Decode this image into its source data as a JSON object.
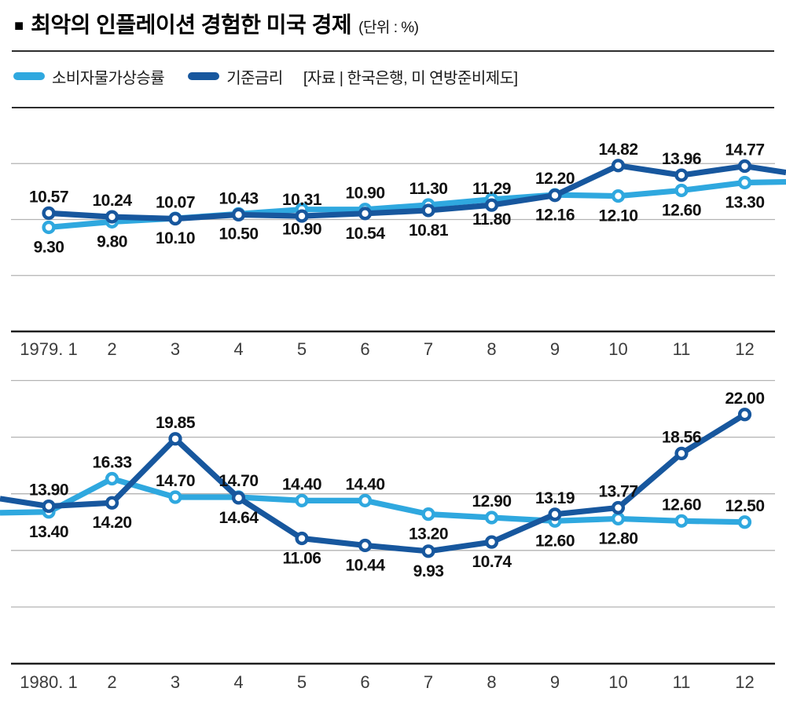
{
  "title": {
    "square_icon": "■",
    "text": "최악의 인플레이션 경험한 미국 경제",
    "unit": "(단위 : %)"
  },
  "legend": {
    "items": [
      {
        "key": "cpi",
        "label": "소비자물가상승률",
        "color": "#2FA8DF"
      },
      {
        "key": "rate",
        "label": "기준금리",
        "color": "#17579E"
      }
    ],
    "source": "[자료 | 한국은행, 미 연방준비제도]"
  },
  "colors": {
    "cpi": "#2FA8DF",
    "rate": "#17579E",
    "grid": "#b3b3b3",
    "axis": "#1f1f1f",
    "data_label": "#101010",
    "axis_label": "#3c3c3c"
  },
  "chart_data": [
    {
      "type": "line",
      "title": "미국 소비자물가상승률 및 기준금리 1979",
      "categories": [
        "1979. 1",
        "2",
        "3",
        "4",
        "5",
        "6",
        "7",
        "8",
        "9",
        "10",
        "11",
        "12"
      ],
      "ylim": [
        0,
        20
      ],
      "grid_step": 5,
      "legend_position": "top",
      "series": [
        {
          "key": "cpi",
          "name": "소비자물가상승률",
          "values": [
            9.3,
            9.8,
            10.1,
            10.5,
            10.9,
            10.9,
            11.3,
            11.8,
            12.2,
            12.1,
            12.6,
            13.3
          ],
          "label_pos": [
            "below",
            "below",
            "below",
            "below",
            "below",
            "above",
            "above",
            "below",
            "above",
            "below",
            "below",
            "below"
          ]
        },
        {
          "key": "rate",
          "name": "기준금리",
          "values": [
            10.57,
            10.24,
            10.07,
            10.43,
            10.31,
            10.54,
            10.81,
            11.29,
            12.16,
            14.82,
            13.96,
            14.77
          ],
          "label_pos": [
            "above",
            "above",
            "above",
            "above",
            "above",
            "below",
            "below",
            "above",
            "below",
            "above",
            "above",
            "above"
          ]
        }
      ],
      "edge": {
        "side": "right",
        "toward": {
          "cpi": 13.4,
          "rate": 13.9
        }
      }
    },
    {
      "type": "line",
      "title": "미국 소비자물가상승률 및 기준금리 1980",
      "categories": [
        "1980. 1",
        "2",
        "3",
        "4",
        "5",
        "6",
        "7",
        "8",
        "9",
        "10",
        "11",
        "12"
      ],
      "ylim": [
        0,
        26
      ],
      "grid_step": 5,
      "legend_position": "top",
      "series": [
        {
          "key": "cpi",
          "name": "소비자물가상승률",
          "values": [
            13.4,
            16.33,
            14.7,
            14.7,
            14.4,
            14.4,
            13.2,
            12.9,
            12.6,
            12.8,
            12.6,
            12.5
          ],
          "label_pos": [
            "below",
            "above",
            "above",
            "above",
            "above",
            "above",
            "below",
            "above",
            "below",
            "below",
            "above",
            "above"
          ]
        },
        {
          "key": "rate",
          "name": "기준금리",
          "values": [
            13.9,
            14.2,
            19.85,
            14.64,
            11.06,
            10.44,
            9.93,
            10.74,
            13.19,
            13.77,
            18.56,
            22.0
          ],
          "label_pos": [
            "above",
            "below",
            "above",
            "below",
            "below",
            "below",
            "below",
            "below",
            "above",
            "above",
            "above",
            "above"
          ]
        }
      ],
      "edge": {
        "side": "left",
        "from": {
          "cpi": 13.3,
          "rate": 14.77
        }
      }
    }
  ]
}
